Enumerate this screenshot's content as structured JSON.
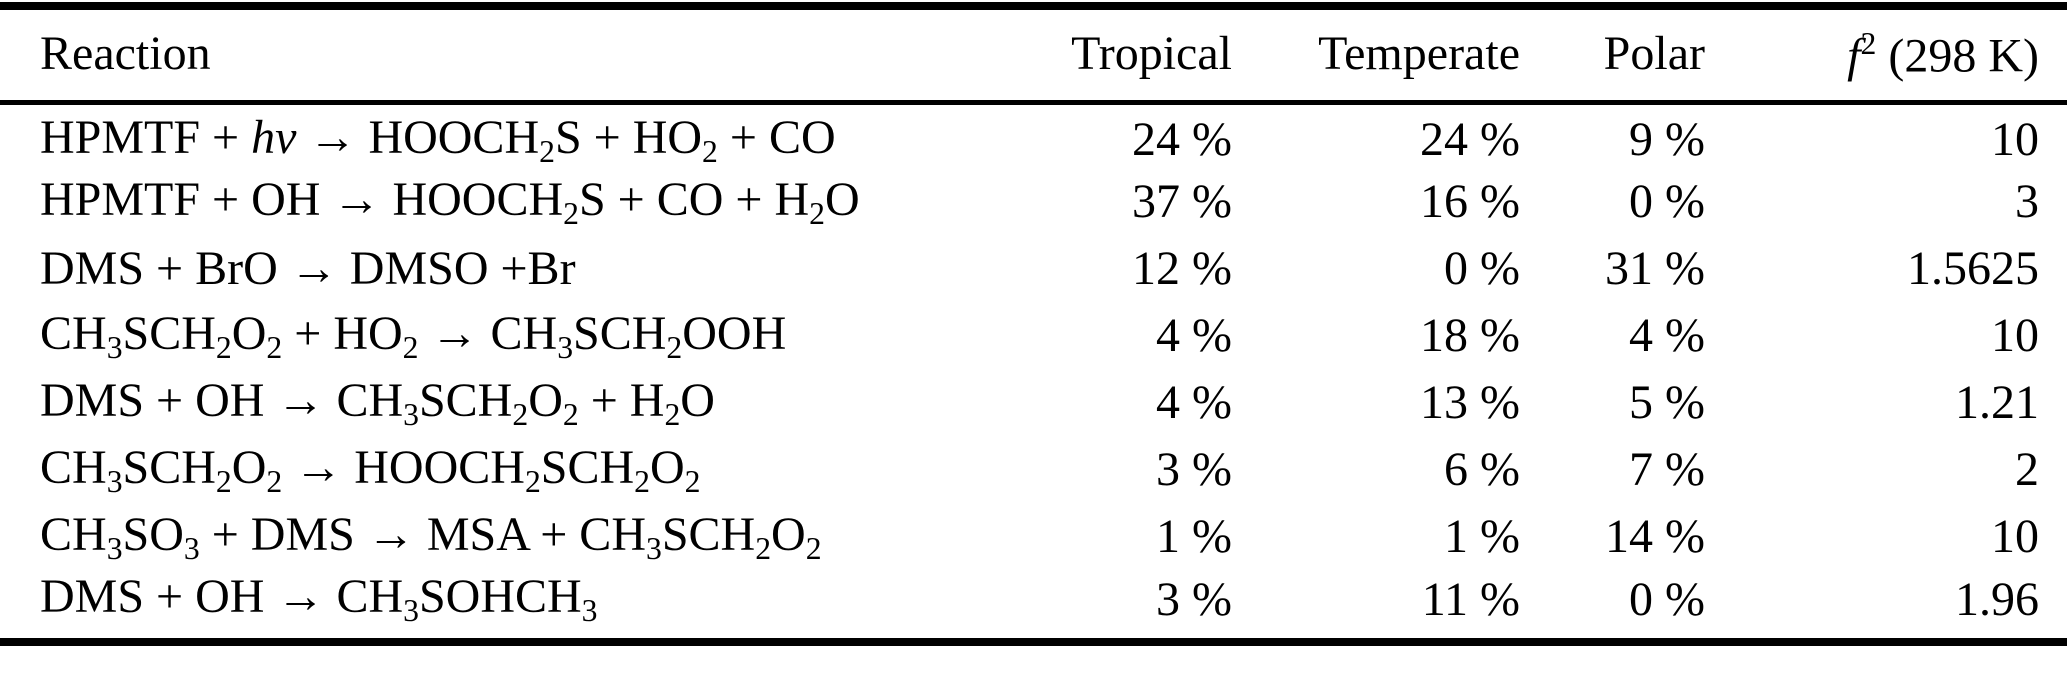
{
  "table": {
    "background_color": "#ffffff",
    "text_color": "#000000",
    "header": {
      "reaction": "Reaction",
      "tropical": "Tropical",
      "temperate": "Temperate",
      "polar": "Polar",
      "f2": [
        {
          "t": "f",
          "i": true
        },
        {
          "t": "2",
          "sup": true
        },
        {
          "t": " (298 K)"
        }
      ]
    },
    "rows": [
      {
        "reaction": [
          {
            "t": "HPMTF + "
          },
          {
            "t": "hν",
            "i": true
          },
          {
            "t": " → HOOCH"
          },
          {
            "t": "2",
            "sub": true
          },
          {
            "t": "S + HO"
          },
          {
            "t": "2",
            "sub": true
          },
          {
            "t": " + CO"
          }
        ],
        "tropical": "24 %",
        "temperate": "24 %",
        "polar": "9 %",
        "f2": "10"
      },
      {
        "reaction": [
          {
            "t": "HPMTF + OH → HOOCH"
          },
          {
            "t": "2",
            "sub": true
          },
          {
            "t": "S + CO + H"
          },
          {
            "t": "2",
            "sub": true
          },
          {
            "t": "O"
          }
        ],
        "tropical": "37 %",
        "temperate": "16 %",
        "polar": "0 %",
        "f2": "3"
      },
      {
        "reaction": [
          {
            "t": "DMS + BrO → DMSO +Br"
          }
        ],
        "tropical": "12 %",
        "temperate": "0 %",
        "polar": "31 %",
        "f2": "1.5625"
      },
      {
        "reaction": [
          {
            "t": "CH"
          },
          {
            "t": "3",
            "sub": true
          },
          {
            "t": "SCH"
          },
          {
            "t": "2",
            "sub": true
          },
          {
            "t": "O"
          },
          {
            "t": "2",
            "sub": true
          },
          {
            "t": " + HO"
          },
          {
            "t": "2",
            "sub": true
          },
          {
            "t": " → CH"
          },
          {
            "t": "3",
            "sub": true
          },
          {
            "t": "SCH"
          },
          {
            "t": "2",
            "sub": true
          },
          {
            "t": "OOH"
          }
        ],
        "tropical": "4 %",
        "temperate": "18 %",
        "polar": "4 %",
        "f2": "10"
      },
      {
        "reaction": [
          {
            "t": "DMS + OH → CH"
          },
          {
            "t": "3",
            "sub": true
          },
          {
            "t": "SCH"
          },
          {
            "t": "2",
            "sub": true
          },
          {
            "t": "O"
          },
          {
            "t": "2",
            "sub": true
          },
          {
            "t": " + H"
          },
          {
            "t": "2",
            "sub": true
          },
          {
            "t": "O"
          }
        ],
        "tropical": "4 %",
        "temperate": "13 %",
        "polar": "5 %",
        "f2": "1.21"
      },
      {
        "reaction": [
          {
            "t": "CH"
          },
          {
            "t": "3",
            "sub": true
          },
          {
            "t": "SCH"
          },
          {
            "t": "2",
            "sub": true
          },
          {
            "t": "O"
          },
          {
            "t": "2",
            "sub": true
          },
          {
            "t": " → HOOCH"
          },
          {
            "t": "2",
            "sub": true
          },
          {
            "t": "SCH"
          },
          {
            "t": "2",
            "sub": true
          },
          {
            "t": "O"
          },
          {
            "t": "2",
            "sub": true
          }
        ],
        "tropical": "3 %",
        "temperate": "6 %",
        "polar": "7 %",
        "f2": "2"
      },
      {
        "reaction": [
          {
            "t": "CH"
          },
          {
            "t": "3",
            "sub": true
          },
          {
            "t": "SO"
          },
          {
            "t": "3",
            "sub": true
          },
          {
            "t": " + DMS → MSA + CH"
          },
          {
            "t": "3",
            "sub": true
          },
          {
            "t": "SCH"
          },
          {
            "t": "2",
            "sub": true
          },
          {
            "t": "O"
          },
          {
            "t": "2",
            "sub": true
          }
        ],
        "tropical": "1 %",
        "temperate": "1 %",
        "polar": "14 %",
        "f2": "10"
      },
      {
        "reaction": [
          {
            "t": "DMS + OH → CH"
          },
          {
            "t": "3",
            "sub": true
          },
          {
            "t": "SOHCH"
          },
          {
            "t": "3",
            "sub": true
          }
        ],
        "tropical": "3 %",
        "temperate": "11 %",
        "polar": "0 %",
        "f2": "1.96"
      }
    ]
  }
}
